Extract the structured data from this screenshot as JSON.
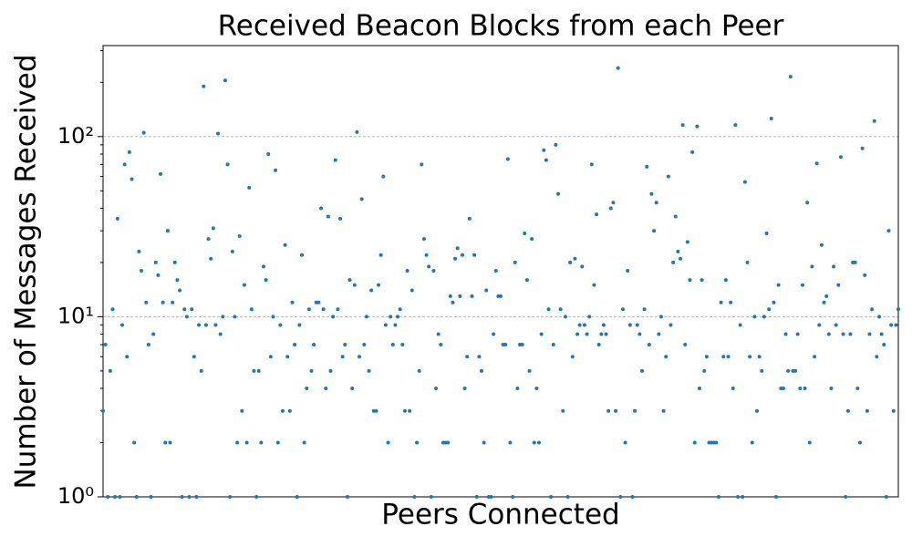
{
  "chart_data": {
    "type": "scatter",
    "title": "Received Beacon Blocks from each Peer",
    "x_label": "Peers Connected",
    "y_label": "Number of Messages Received",
    "color": "#1f77b4",
    "log_y": true,
    "grid": true,
    "ylim": [
      1,
      320
    ],
    "yticks": [
      {
        "value": 1,
        "label": "10⁰"
      },
      {
        "value": 10,
        "label": "10¹"
      },
      {
        "value": 100,
        "label": "10²"
      }
    ],
    "values": [
      3,
      7,
      1,
      5,
      11,
      1,
      35,
      1,
      9,
      70,
      6,
      82,
      58,
      2,
      1,
      23,
      18,
      105,
      12,
      7,
      1,
      8,
      20,
      17,
      62,
      12,
      2,
      30,
      2,
      12,
      20,
      16,
      14,
      1,
      11,
      10,
      1,
      11,
      6,
      1,
      9,
      5,
      190,
      9,
      27,
      21,
      31,
      9,
      104,
      8,
      10,
      205,
      70,
      1,
      23,
      10,
      2,
      28,
      3,
      15,
      2,
      52,
      11,
      5,
      1,
      5,
      2,
      19,
      16,
      80,
      6,
      10,
      65,
      2,
      9,
      3,
      25,
      6,
      3,
      12,
      7,
      1,
      9,
      22,
      2,
      4,
      11,
      5,
      7,
      12,
      12,
      40,
      11,
      4,
      36,
      5,
      10,
      74,
      11,
      35,
      6,
      7,
      1,
      16,
      4,
      15,
      106,
      6,
      45,
      7,
      10,
      5,
      14,
      3,
      3,
      15,
      22,
      60,
      9,
      2,
      10,
      7,
      9,
      10,
      11,
      7,
      3,
      18,
      3,
      14,
      1,
      2,
      5,
      70,
      27,
      22,
      19,
      1,
      18,
      4,
      8,
      7,
      2,
      2,
      2,
      13,
      12,
      21,
      24,
      13,
      22,
      4,
      6,
      35,
      13,
      22,
      1,
      6,
      5,
      2,
      14,
      1,
      1,
      8,
      18,
      13,
      13,
      7,
      7,
      75,
      2,
      1,
      20,
      4,
      7,
      7,
      29,
      16,
      5,
      27,
      2,
      4,
      2,
      8,
      84,
      74,
      11,
      1,
      7,
      90,
      48,
      11,
      3,
      10,
      1,
      20,
      6,
      21,
      8,
      9,
      19,
      9,
      8,
      10,
      70,
      15,
      37,
      7,
      8,
      9,
      8,
      3,
      40,
      43,
      3,
      240,
      1,
      11,
      2,
      18,
      9,
      1,
      3,
      9,
      8,
      5,
      11,
      68,
      7,
      48,
      30,
      43,
      8,
      10,
      3,
      6,
      60,
      9,
      20,
      36,
      23,
      21,
      116,
      7,
      26,
      16,
      82,
      2,
      114,
      4,
      16,
      5,
      6,
      2,
      2,
      2,
      2,
      1,
      12,
      6,
      16,
      6,
      12,
      4,
      116,
      1,
      9,
      1,
      56,
      20,
      6,
      2,
      10,
      3,
      6,
      5,
      10,
      29,
      11,
      126,
      12,
      1,
      15,
      4,
      4,
      8,
      5,
      215,
      5,
      5,
      8,
      4,
      15,
      4,
      43,
      2,
      19,
      6,
      71,
      9,
      25,
      12,
      13,
      8,
      4,
      19,
      9,
      15,
      77,
      8,
      1,
      3,
      8,
      20,
      20,
      4,
      2,
      86,
      17,
      3,
      8,
      11,
      122,
      6,
      10,
      8,
      7,
      1,
      30,
      9,
      3,
      9,
      11
    ]
  }
}
